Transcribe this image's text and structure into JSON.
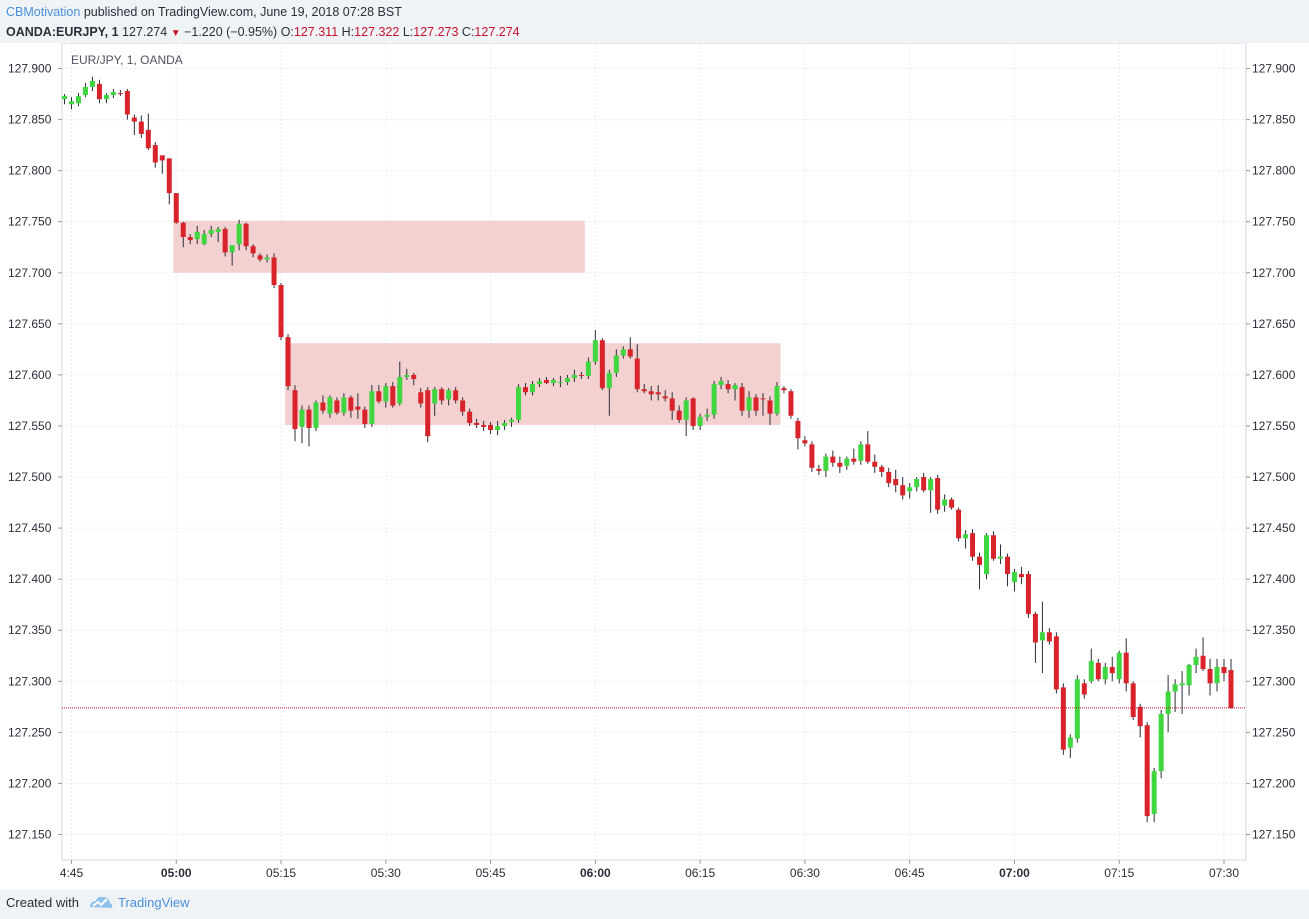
{
  "header": {
    "author": "CBMotivation",
    "published_text": "published on TradingView.com, June 19, 2018 07:28 BST",
    "symbol": "OANDA:EURJPY, 1",
    "last": "127.274",
    "change": "−1.220 (−0.95%)",
    "o_label": "O:",
    "o_value": "127.311",
    "h_label": "H:",
    "h_value": "127.322",
    "l_label": "L:",
    "l_value": "127.273",
    "c_label": "C:",
    "c_value": "127.274"
  },
  "footer": {
    "created_with": "Created with",
    "brand": "TradingView"
  },
  "colors": {
    "up": "#3fd63f",
    "down": "#d8232a",
    "zone": "#f3cccc",
    "last_price_line": "#c8102e",
    "grid": "#e9ecef"
  },
  "chart_data": {
    "type": "candlestick",
    "title": "EUR/JPY, 1, OANDA",
    "ylim": [
      127.125,
      127.925
    ],
    "y_ticks": [
      127.9,
      127.85,
      127.8,
      127.75,
      127.7,
      127.65,
      127.6,
      127.55,
      127.5,
      127.45,
      127.4,
      127.35,
      127.3,
      127.25,
      127.2,
      127.15
    ],
    "y_tick_labels": [
      "127.900",
      "127.850",
      "127.800",
      "127.750",
      "127.700",
      "127.650",
      "127.600",
      "127.550",
      "127.500",
      "127.450",
      "127.400",
      "127.350",
      "127.300",
      "127.250",
      "127.200",
      "127.150"
    ],
    "x_start": "04:44",
    "x_ticks": [
      {
        "minute": 1,
        "label": "4:45",
        "bold": false
      },
      {
        "minute": 16,
        "label": "05:00",
        "bold": true
      },
      {
        "minute": 31,
        "label": "05:15",
        "bold": false
      },
      {
        "minute": 46,
        "label": "05:30",
        "bold": false
      },
      {
        "minute": 61,
        "label": "05:45",
        "bold": false
      },
      {
        "minute": 76,
        "label": "06:00",
        "bold": true
      },
      {
        "minute": 91,
        "label": "06:15",
        "bold": false
      },
      {
        "minute": 106,
        "label": "06:30",
        "bold": false
      },
      {
        "minute": 121,
        "label": "06:45",
        "bold": false
      },
      {
        "minute": 136,
        "label": "07:00",
        "bold": true
      },
      {
        "minute": 151,
        "label": "07:15",
        "bold": false
      },
      {
        "minute": 166,
        "label": "07:30",
        "bold": false
      }
    ],
    "zones": [
      {
        "from_minute": 16,
        "to_minute": 74.5,
        "high": 127.751,
        "low": 127.7
      },
      {
        "from_minute": 32,
        "to_minute": 102.5,
        "high": 127.631,
        "low": 127.551
      }
    ],
    "last_price": 127.274,
    "candles": [
      [
        127.87,
        127.875,
        127.865,
        127.873
      ],
      [
        127.865,
        127.872,
        127.86,
        127.868
      ],
      [
        127.866,
        127.876,
        127.863,
        127.873
      ],
      [
        127.874,
        127.886,
        127.872,
        127.882
      ],
      [
        127.882,
        127.892,
        127.878,
        127.888
      ],
      [
        127.885,
        127.889,
        127.866,
        127.87
      ],
      [
        127.87,
        127.876,
        127.866,
        127.874
      ],
      [
        127.874,
        127.88,
        127.871,
        127.877
      ],
      [
        127.876,
        127.879,
        127.873,
        127.875
      ],
      [
        127.878,
        127.88,
        127.85,
        127.855
      ],
      [
        127.852,
        127.855,
        127.835,
        127.848
      ],
      [
        127.848,
        127.854,
        127.832,
        127.836
      ],
      [
        127.84,
        127.856,
        127.82,
        127.822
      ],
      [
        127.825,
        127.828,
        127.803,
        127.808
      ],
      [
        127.815,
        127.815,
        127.797,
        127.81
      ],
      [
        127.812,
        127.812,
        127.767,
        127.778
      ],
      [
        127.778,
        127.778,
        127.748,
        127.749
      ],
      [
        127.749,
        127.75,
        127.725,
        127.735
      ],
      [
        127.735,
        127.738,
        127.728,
        127.732
      ],
      [
        127.733,
        127.746,
        127.728,
        127.74
      ],
      [
        127.728,
        127.742,
        127.727,
        127.738
      ],
      [
        127.738,
        127.746,
        127.735,
        127.742
      ],
      [
        127.74,
        127.745,
        127.73,
        127.743
      ],
      [
        127.743,
        127.745,
        127.716,
        127.72
      ],
      [
        127.72,
        127.725,
        127.707,
        127.727
      ],
      [
        127.728,
        127.752,
        127.722,
        127.748
      ],
      [
        127.748,
        127.749,
        127.722,
        127.726
      ],
      [
        127.726,
        127.728,
        127.715,
        127.719
      ],
      [
        127.717,
        127.719,
        127.711,
        127.713
      ],
      [
        127.713,
        127.718,
        127.71,
        127.715
      ],
      [
        127.715,
        127.719,
        127.685,
        127.688
      ],
      [
        127.688,
        127.69,
        127.634,
        127.637
      ],
      [
        127.637,
        127.64,
        127.585,
        127.589
      ],
      [
        127.585,
        127.59,
        127.535,
        127.547
      ],
      [
        127.549,
        127.57,
        127.533,
        127.566
      ],
      [
        127.566,
        127.57,
        127.53,
        127.548
      ],
      [
        127.548,
        127.575,
        127.545,
        127.573
      ],
      [
        127.573,
        127.58,
        127.562,
        127.565
      ],
      [
        127.562,
        127.58,
        127.558,
        127.578
      ],
      [
        127.575,
        127.578,
        127.561,
        127.563
      ],
      [
        127.563,
        127.582,
        127.56,
        127.578
      ],
      [
        127.578,
        127.58,
        127.558,
        127.565
      ],
      [
        127.569,
        127.582,
        127.557,
        127.566
      ],
      [
        127.566,
        127.569,
        127.548,
        127.552
      ],
      [
        127.552,
        127.59,
        127.549,
        127.584
      ],
      [
        127.584,
        127.59,
        127.572,
        127.574
      ],
      [
        127.574,
        127.592,
        127.568,
        127.589
      ],
      [
        127.589,
        127.593,
        127.568,
        127.57
      ],
      [
        127.572,
        127.613,
        127.57,
        127.598
      ],
      [
        127.598,
        127.606,
        127.595,
        127.6
      ],
      [
        127.6,
        127.602,
        127.59,
        127.596
      ],
      [
        127.583,
        127.587,
        127.568,
        127.572
      ],
      [
        127.585,
        127.588,
        127.534,
        127.54
      ],
      [
        127.572,
        127.588,
        127.56,
        127.586
      ],
      [
        127.586,
        127.588,
        127.571,
        127.575
      ],
      [
        127.576,
        127.587,
        127.57,
        127.585
      ],
      [
        127.585,
        127.588,
        127.572,
        127.575
      ],
      [
        127.575,
        127.578,
        127.56,
        127.564
      ],
      [
        127.564,
        127.567,
        127.55,
        127.553
      ],
      [
        127.553,
        127.557,
        127.548,
        127.551
      ],
      [
        127.551,
        127.555,
        127.545,
        127.549
      ],
      [
        127.551,
        127.554,
        127.542,
        127.546
      ],
      [
        127.546,
        127.555,
        127.541,
        127.55
      ],
      [
        127.55,
        127.556,
        127.546,
        127.553
      ],
      [
        127.554,
        127.558,
        127.549,
        127.556
      ],
      [
        127.556,
        127.591,
        127.553,
        127.588
      ],
      [
        127.588,
        127.592,
        127.58,
        127.583
      ],
      [
        127.583,
        127.594,
        127.58,
        127.591
      ],
      [
        127.591,
        127.597,
        127.588,
        127.594
      ],
      [
        127.595,
        127.598,
        127.591,
        127.592
      ],
      [
        127.592,
        127.597,
        127.589,
        127.595
      ],
      [
        127.592,
        127.599,
        127.588,
        127.593
      ],
      [
        127.593,
        127.6,
        127.59,
        127.597
      ],
      [
        127.597,
        127.605,
        127.593,
        127.6
      ],
      [
        127.6,
        127.603,
        127.596,
        127.599
      ],
      [
        127.599,
        127.617,
        127.596,
        127.613
      ],
      [
        127.613,
        127.644,
        127.61,
        127.634
      ],
      [
        127.634,
        127.636,
        127.585,
        127.587
      ],
      [
        127.587,
        127.605,
        127.56,
        127.602
      ],
      [
        127.602,
        127.625,
        127.598,
        127.619
      ],
      [
        127.619,
        127.628,
        127.616,
        127.625
      ],
      [
        127.625,
        127.637,
        127.616,
        127.618
      ],
      [
        127.616,
        127.63,
        127.583,
        127.586
      ],
      [
        127.586,
        127.591,
        127.582,
        127.584
      ],
      [
        127.584,
        127.589,
        127.575,
        127.581
      ],
      [
        127.583,
        127.59,
        127.575,
        127.581
      ],
      [
        127.579,
        127.585,
        127.574,
        127.577
      ],
      [
        127.577,
        127.583,
        127.556,
        127.565
      ],
      [
        127.565,
        127.57,
        127.553,
        127.556
      ],
      [
        127.556,
        127.578,
        127.54,
        127.575
      ],
      [
        127.577,
        127.578,
        127.546,
        127.55
      ],
      [
        127.55,
        127.562,
        127.546,
        127.559
      ],
      [
        127.559,
        127.567,
        127.555,
        127.561
      ],
      [
        127.561,
        127.594,
        127.557,
        127.591
      ],
      [
        127.59,
        127.598,
        127.586,
        127.594
      ],
      [
        127.591,
        127.595,
        127.582,
        127.586
      ],
      [
        127.586,
        127.592,
        127.575,
        127.59
      ],
      [
        127.588,
        127.592,
        127.56,
        127.565
      ],
      [
        127.565,
        127.584,
        127.558,
        127.578
      ],
      [
        127.578,
        127.581,
        127.56,
        127.565
      ],
      [
        127.577,
        127.582,
        127.56,
        127.576
      ],
      [
        127.575,
        127.579,
        127.551,
        127.562
      ],
      [
        127.562,
        127.593,
        127.56,
        127.589
      ],
      [
        127.587,
        127.589,
        127.582,
        127.585
      ],
      [
        127.584,
        127.586,
        127.557,
        127.56
      ],
      [
        127.555,
        127.558,
        127.527,
        127.538
      ],
      [
        127.536,
        127.54,
        127.53,
        127.533
      ],
      [
        127.532,
        127.535,
        127.505,
        127.509
      ],
      [
        127.508,
        127.512,
        127.502,
        127.506
      ],
      [
        127.506,
        127.523,
        127.5,
        127.52
      ],
      [
        127.52,
        127.526,
        127.51,
        127.514
      ],
      [
        127.514,
        127.52,
        127.504,
        127.51
      ],
      [
        127.511,
        127.52,
        127.507,
        127.518
      ],
      [
        127.518,
        127.528,
        127.512,
        127.515
      ],
      [
        127.516,
        127.535,
        127.512,
        127.532
      ],
      [
        127.532,
        127.545,
        127.513,
        127.515
      ],
      [
        127.515,
        127.522,
        127.504,
        127.51
      ],
      [
        127.51,
        127.512,
        127.5,
        127.505
      ],
      [
        127.505,
        127.509,
        127.49,
        127.494
      ],
      [
        127.498,
        127.507,
        127.485,
        127.492
      ],
      [
        127.492,
        127.5,
        127.478,
        127.482
      ],
      [
        127.486,
        127.494,
        127.479,
        127.49
      ],
      [
        127.49,
        127.5,
        127.486,
        127.498
      ],
      [
        127.5,
        127.504,
        127.485,
        127.487
      ],
      [
        127.487,
        127.5,
        127.465,
        127.498
      ],
      [
        127.499,
        127.502,
        127.464,
        127.468
      ],
      [
        127.472,
        127.483,
        127.466,
        127.478
      ],
      [
        127.478,
        127.48,
        127.468,
        127.47
      ],
      [
        127.468,
        127.47,
        127.437,
        127.44
      ],
      [
        127.44,
        127.448,
        127.43,
        127.444
      ],
      [
        127.445,
        127.449,
        127.418,
        127.422
      ],
      [
        127.422,
        127.426,
        127.39,
        127.414
      ],
      [
        127.405,
        127.445,
        127.4,
        127.443
      ],
      [
        127.443,
        127.447,
        127.418,
        127.42
      ],
      [
        127.42,
        127.434,
        127.415,
        127.422
      ],
      [
        127.422,
        127.425,
        127.393,
        127.405
      ],
      [
        127.397,
        127.41,
        127.388,
        127.407
      ],
      [
        127.405,
        127.412,
        127.395,
        127.402
      ],
      [
        127.405,
        127.408,
        127.362,
        127.366
      ],
      [
        127.366,
        127.368,
        127.318,
        127.338
      ],
      [
        127.34,
        127.378,
        127.308,
        127.348
      ],
      [
        127.348,
        127.352,
        127.336,
        127.339
      ],
      [
        127.344,
        127.348,
        127.288,
        127.292
      ],
      [
        127.294,
        127.298,
        127.228,
        127.233
      ],
      [
        127.235,
        127.248,
        127.225,
        127.245
      ],
      [
        127.244,
        127.306,
        127.24,
        127.302
      ],
      [
        127.298,
        127.302,
        127.283,
        127.287
      ],
      [
        127.3,
        127.332,
        127.298,
        127.32
      ],
      [
        127.318,
        127.322,
        127.3,
        127.302
      ],
      [
        127.302,
        127.318,
        127.297,
        127.314
      ],
      [
        127.314,
        127.324,
        127.3,
        127.308
      ],
      [
        127.302,
        127.33,
        127.298,
        127.328
      ],
      [
        127.328,
        127.342,
        127.29,
        127.298
      ],
      [
        127.298,
        127.3,
        127.262,
        127.265
      ],
      [
        127.275,
        127.278,
        127.245,
        127.256
      ],
      [
        127.257,
        127.26,
        127.162,
        127.168
      ],
      [
        127.17,
        127.215,
        127.162,
        127.212
      ],
      [
        127.212,
        127.272,
        127.205,
        127.268
      ],
      [
        127.268,
        127.306,
        127.25,
        127.29
      ],
      [
        127.29,
        127.302,
        127.27,
        127.297
      ],
      [
        127.296,
        127.31,
        127.268,
        127.298
      ],
      [
        127.296,
        127.317,
        127.286,
        127.316
      ],
      [
        127.316,
        127.332,
        127.308,
        127.324
      ],
      [
        127.325,
        127.343,
        127.31,
        127.312
      ],
      [
        127.312,
        127.322,
        127.286,
        127.298
      ],
      [
        127.298,
        127.322,
        127.29,
        127.314
      ],
      [
        127.314,
        127.322,
        127.3,
        127.308
      ],
      [
        127.311,
        127.322,
        127.273,
        127.274
      ]
    ]
  }
}
